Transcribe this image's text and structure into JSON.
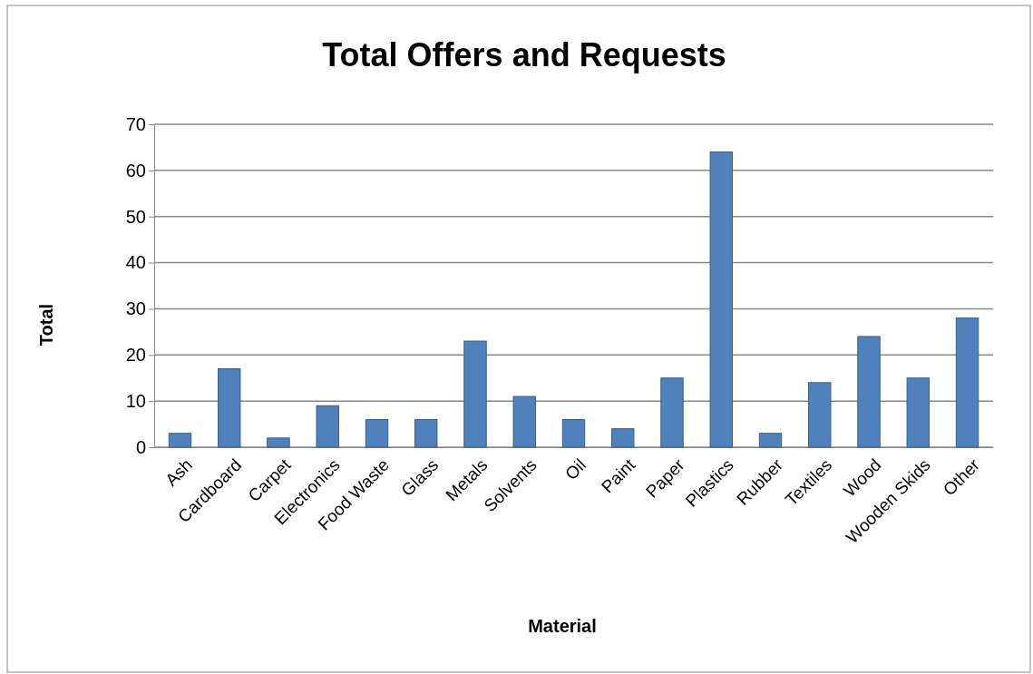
{
  "chart_data": {
    "type": "bar",
    "title": "Total Offers and Requests",
    "xlabel": "Material",
    "ylabel": "Total",
    "categories": [
      "Ash",
      "Cardboard",
      "Carpet",
      "Electronics",
      "Food Waste",
      "Glass",
      "Metals",
      "Solvents",
      "Oil",
      "Paint",
      "Paper",
      "Plastics",
      "Rubber",
      "Textiles",
      "Wood",
      "Wooden Skids",
      "Other"
    ],
    "values": [
      3,
      17,
      2,
      9,
      6,
      6,
      23,
      11,
      6,
      4,
      15,
      64,
      3,
      14,
      24,
      15,
      28
    ],
    "color": "#4f81bd",
    "ylim": [
      0,
      70
    ],
    "yticks": [
      0,
      10,
      20,
      30,
      40,
      50,
      60,
      70
    ],
    "grid": "y"
  }
}
